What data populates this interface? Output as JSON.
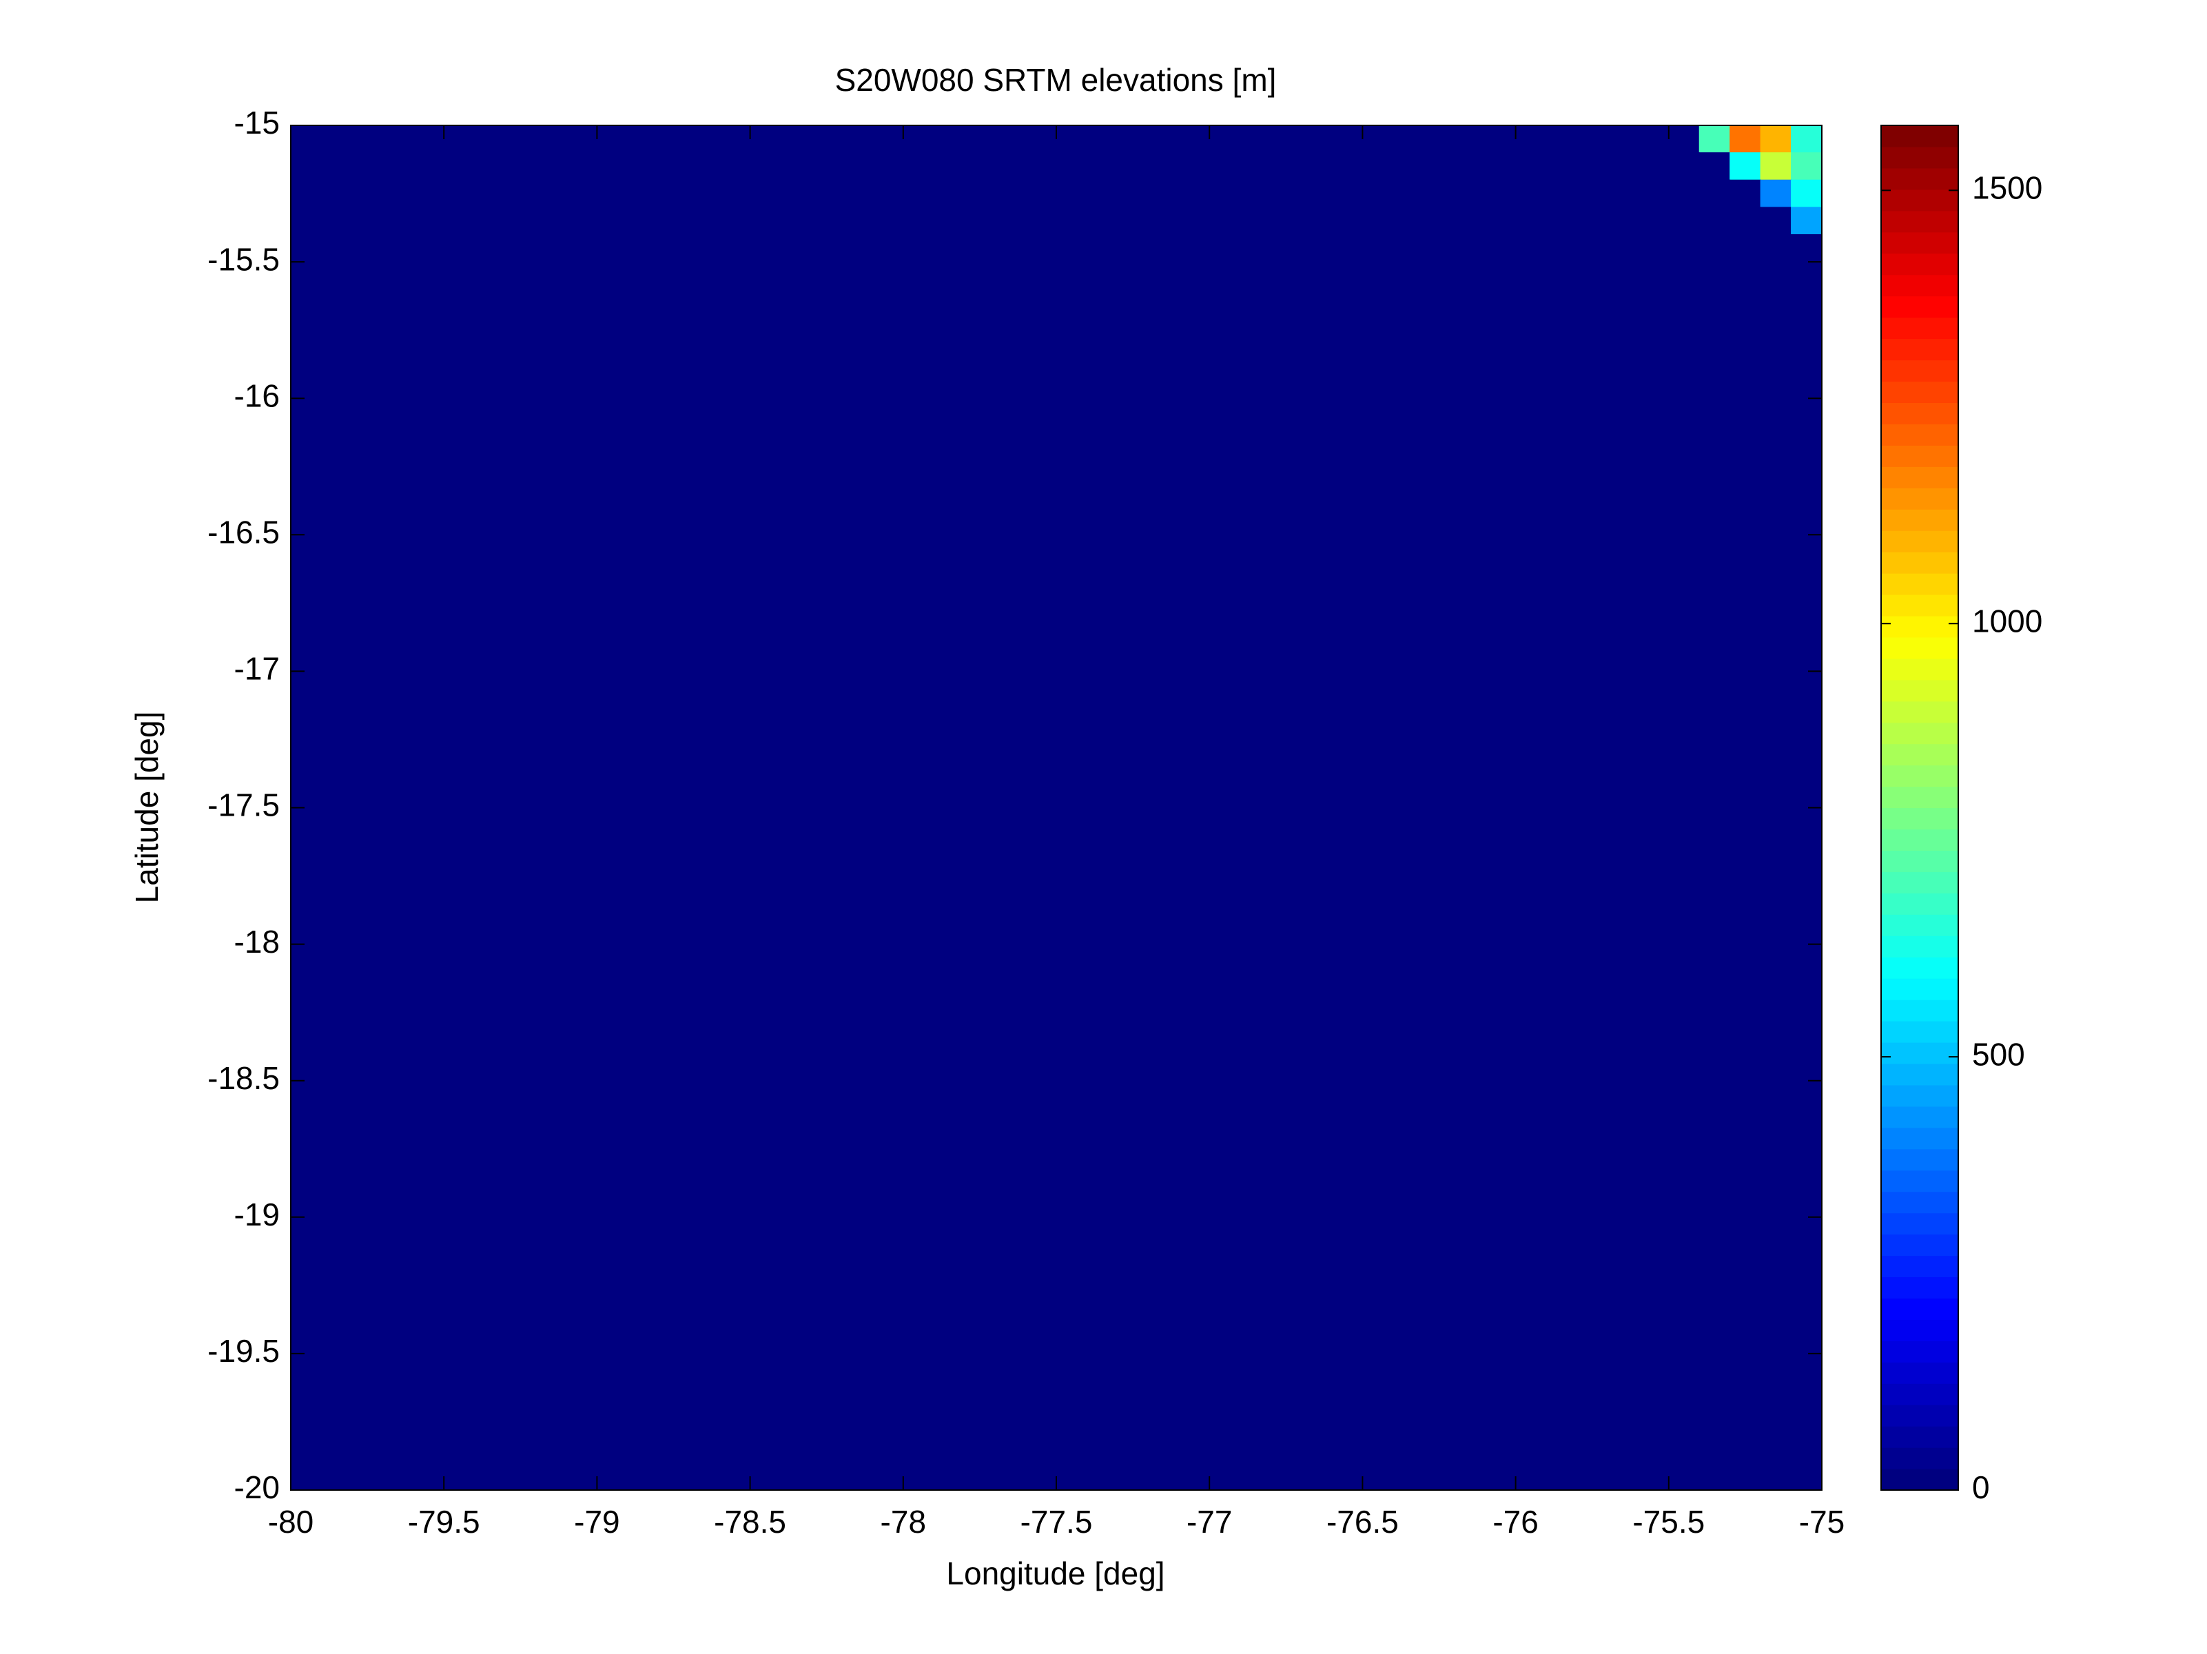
{
  "chart_data": {
    "type": "heatmap",
    "title": "S20W080 SRTM elevations [m]",
    "x_label": "Longitude [deg]",
    "y_label": "Latitude [deg]",
    "xbins": [
      -80,
      -75.5,
      -75.4,
      -75.3,
      -75.2,
      -75.1,
      -75
    ],
    "ybins": [
      -15,
      -15.1,
      -15.2,
      -15.3,
      -15.4,
      -15.5,
      -20
    ],
    "z": [
      [
        0,
        0,
        700,
        1200,
        1100,
        650
      ],
      [
        0,
        0,
        0,
        600,
        900,
        700
      ],
      [
        0,
        0,
        0,
        0,
        400,
        600
      ],
      [
        0,
        0,
        0,
        0,
        0,
        450
      ],
      [
        0,
        0,
        0,
        0,
        0,
        0
      ],
      [
        0,
        0,
        0,
        0,
        0,
        0
      ]
    ],
    "colormap": "jet",
    "clim": [
      0,
      1575
    ],
    "cticks": [
      0,
      500,
      1000,
      1500
    ],
    "xlim": [
      -80,
      -75
    ],
    "ylim": [
      -20,
      -15
    ],
    "xticks": [
      -80,
      -79.5,
      -79,
      -78.5,
      -78,
      -77.5,
      -77,
      -76.5,
      -76,
      -75.5,
      -75
    ],
    "yticks": [
      -20,
      -19.5,
      -19,
      -18.5,
      -18,
      -17.5,
      -17,
      -16.5,
      -16,
      -15.5,
      -15
    ]
  }
}
